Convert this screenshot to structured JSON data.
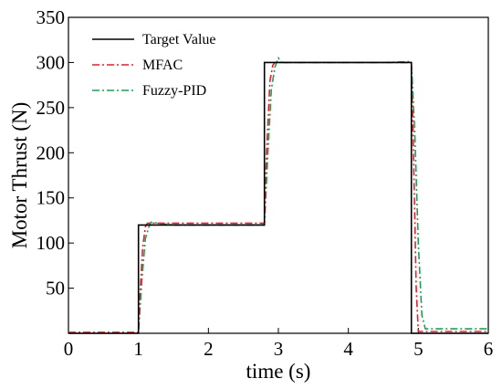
{
  "chart_data": {
    "type": "line",
    "title": "",
    "xlabel": "time (s)",
    "ylabel": "Motor Thrust (N)",
    "xlim": [
      0,
      6
    ],
    "ylim": [
      0,
      350
    ],
    "x_ticks": [
      0,
      1,
      2,
      3,
      4,
      5,
      6
    ],
    "y_ticks": [
      50,
      100,
      150,
      200,
      250,
      300,
      350
    ],
    "grid": false,
    "legend_position": "top-left",
    "series": [
      {
        "name": "Target Value",
        "color": "#000000",
        "style": "solid",
        "x": [
          0,
          1.0,
          1.0,
          2.8,
          2.8,
          4.9,
          4.9,
          6.0
        ],
        "y": [
          0,
          0,
          120,
          120,
          300,
          300,
          0,
          0
        ]
      },
      {
        "name": "MFAC",
        "color": "#e0202e",
        "style": "dashdot",
        "x": [
          0,
          1.0,
          1.02,
          1.06,
          1.1,
          1.13,
          1.3,
          1.6,
          2.0,
          2.4,
          2.8,
          2.83,
          2.88,
          2.92,
          2.95,
          3.2,
          3.6,
          4.0,
          4.4,
          4.9,
          4.93,
          4.97,
          5.0,
          5.3,
          6.0
        ],
        "y": [
          1,
          1,
          40,
          95,
          118,
          122,
          122,
          122,
          122,
          122,
          122,
          200,
          280,
          297,
          300,
          300,
          300,
          300,
          300,
          300,
          200,
          50,
          2,
          2,
          2
        ]
      },
      {
        "name": "Fuzzy-PID",
        "color": "#1f9e5a",
        "style": "dashdot",
        "x": [
          0,
          1.0,
          1.05,
          1.1,
          1.15,
          1.18,
          1.5,
          2.0,
          2.5,
          2.8,
          2.85,
          2.9,
          2.95,
          3.0,
          3.05,
          3.5,
          4.0,
          4.5,
          4.9,
          4.95,
          5.0,
          5.05,
          5.1,
          6.0
        ],
        "y": [
          1,
          1,
          60,
          105,
          118,
          123,
          120,
          120,
          120,
          120,
          200,
          270,
          295,
          305,
          300,
          300,
          300,
          300,
          301,
          220,
          100,
          20,
          5,
          5
        ]
      }
    ]
  }
}
